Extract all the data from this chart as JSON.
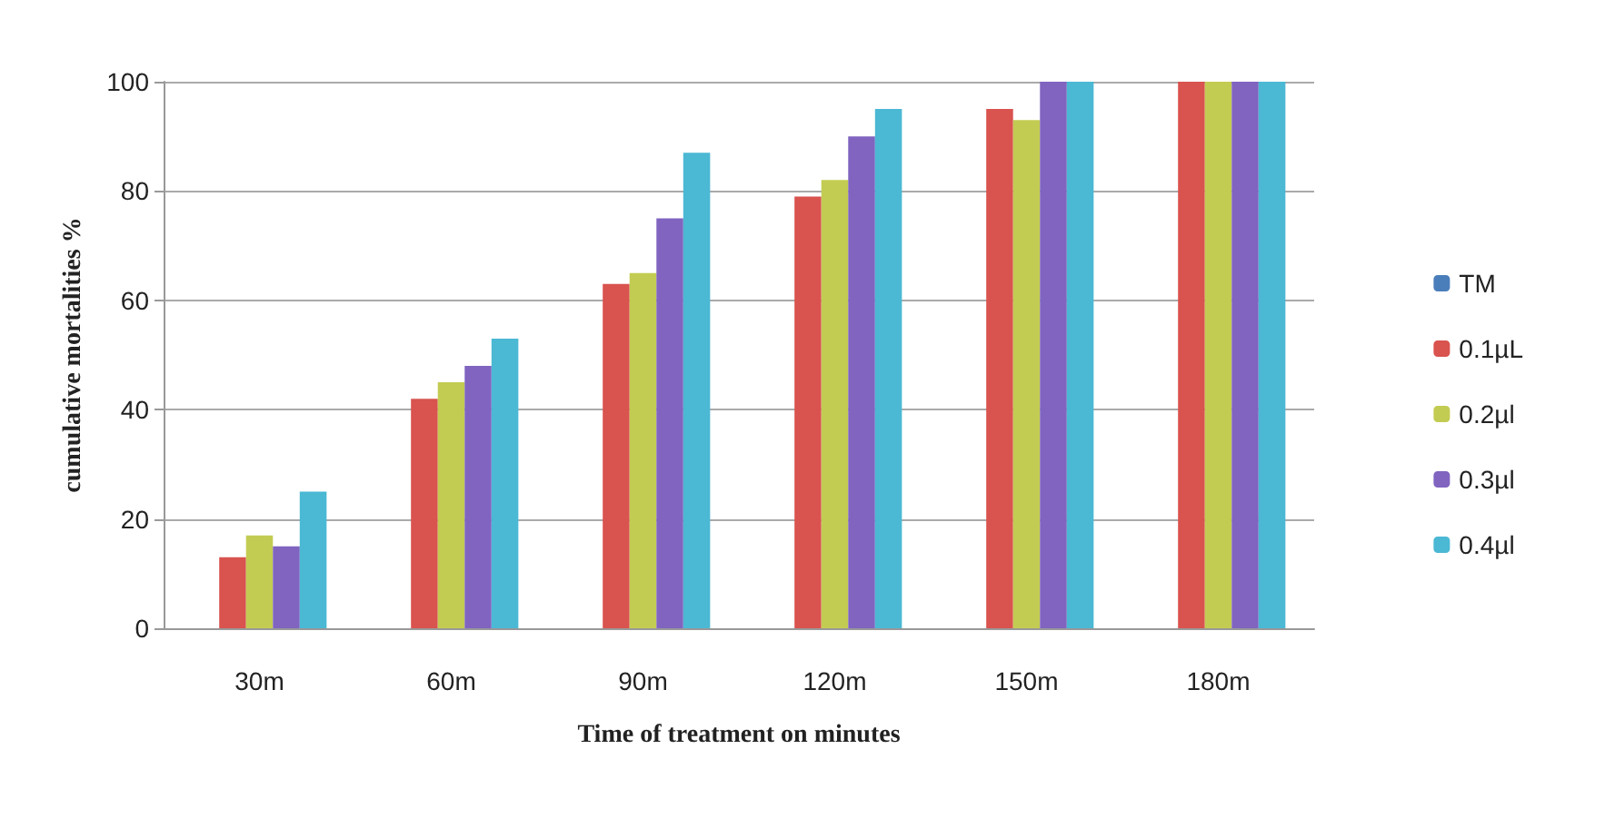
{
  "chart_data": {
    "type": "bar",
    "xlabel": "Time of treatment on minutes",
    "ylabel": "cumulative mortalities %",
    "categories": [
      "30m",
      "60m",
      "90m",
      "120m",
      "150m",
      "180m"
    ],
    "series": [
      {
        "name": "TM",
        "color": "#4a7ebb",
        "values": [
          0,
          0,
          0,
          0,
          0,
          0
        ]
      },
      {
        "name": "0.1µL",
        "color": "#d9534f",
        "values": [
          13,
          42,
          63,
          79,
          95,
          100
        ]
      },
      {
        "name": "0.2µl",
        "color": "#c3cc52",
        "values": [
          17,
          45,
          65,
          82,
          93,
          100
        ]
      },
      {
        "name": "0.3µl",
        "color": "#8064c0",
        "values": [
          15,
          48,
          75,
          90,
          100,
          100
        ]
      },
      {
        "name": "0.4µl",
        "color": "#4bb8d4",
        "values": [
          25,
          53,
          87,
          95,
          100,
          100
        ]
      }
    ],
    "ylim": [
      0,
      100
    ],
    "yticks": [
      0,
      20,
      40,
      60,
      80,
      100
    ],
    "grid": "y",
    "legend": "right"
  }
}
